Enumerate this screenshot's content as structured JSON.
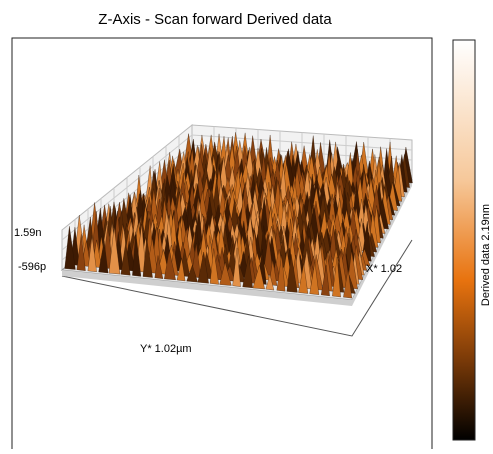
{
  "header": {
    "title": "Z-Axis - Scan forward   Derived data"
  },
  "plot": {
    "z_max_label": "1.59n",
    "z_min_label": "-596p",
    "x_axis_label": "X* 1.02",
    "y_axis_label": "Y* 1.02µm"
  },
  "colorbar": {
    "label": "Derived data 2.19nm"
  }
}
